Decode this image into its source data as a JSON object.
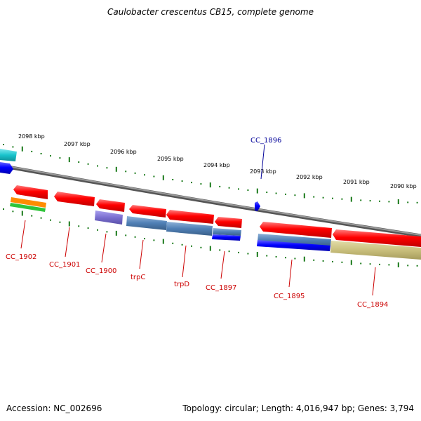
{
  "title": "Caulobacter crescentus CB15, complete genome",
  "footer": {
    "accession": "Accession: NC_002696",
    "summary": "Topology: circular; Length: 4,016,947 bp; Genes: 3,794"
  },
  "ticks_kbp": [
    "2098 kbp",
    "2097 kbp",
    "2096 kbp",
    "2095 kbp",
    "2094 kbp",
    "2093 kbp",
    "2092 kbp",
    "2091 kbp",
    "2090 kbp"
  ],
  "genes": [
    {
      "name": "CC_1902",
      "strand": "reverse"
    },
    {
      "name": "CC_1901",
      "strand": "reverse"
    },
    {
      "name": "CC_1900",
      "strand": "reverse"
    },
    {
      "name": "trpC",
      "strand": "reverse"
    },
    {
      "name": "trpD",
      "strand": "reverse"
    },
    {
      "name": "CC_1897",
      "strand": "reverse"
    },
    {
      "name": "CC_1896",
      "strand": "forward"
    },
    {
      "name": "CC_1895",
      "strand": "reverse"
    },
    {
      "name": "CC_1894",
      "strand": "reverse"
    }
  ],
  "colors": {
    "gene_red": "#ff0000",
    "gene_blue": "#0000ff",
    "steel_blue": "#4f7fb5",
    "purple": "#7a6fd0",
    "khaki": "#c9bf7c",
    "cyan": "#19c4cc",
    "orange": "#ff8c00",
    "green": "#2fc43a",
    "tick_green": "#1a7a1a",
    "backbone": "#7a7a7a",
    "label_red": "#cc0000",
    "label_blue": "#000099"
  }
}
